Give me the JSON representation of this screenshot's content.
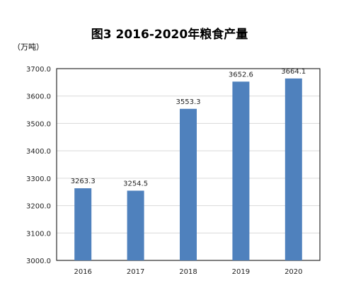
{
  "chart_data": {
    "type": "bar",
    "title": "图3 2016-2020年粮食产量",
    "unit_label": "（万吨）",
    "categories": [
      "2016",
      "2017",
      "2018",
      "2019",
      "2020"
    ],
    "values": [
      3263.3,
      3254.5,
      3553.3,
      3652.6,
      3664.1
    ],
    "value_labels": [
      "3263.3",
      "3254.5",
      "3553.3",
      "3652.6",
      "3664.1"
    ],
    "ylim": [
      3000,
      3700
    ],
    "yticks": [
      3000,
      3100,
      3200,
      3300,
      3400,
      3500,
      3600,
      3700
    ],
    "ytick_labels": [
      "3000.0",
      "3100.0",
      "3200.0",
      "3300.0",
      "3400.0",
      "3500.0",
      "3600.0",
      "3700.0"
    ],
    "xlabel": "",
    "ylabel": "",
    "grid": true,
    "legend": "none",
    "bar_color": "#4f81bd",
    "grid_color": "#d9d9d9"
  }
}
